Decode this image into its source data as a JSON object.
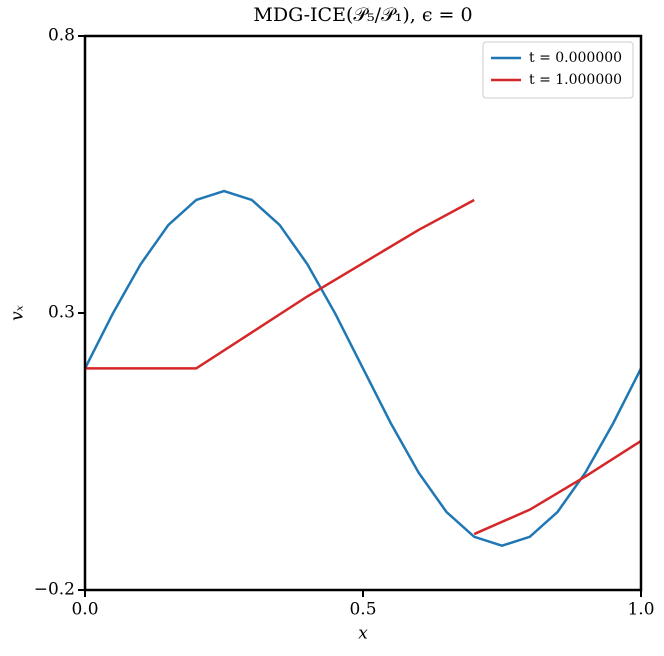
{
  "chart_data": {
    "type": "line",
    "title": "MDG-ICE(𝒫₅/𝒫₁), ϵ = 0",
    "x_label": "x",
    "y_label": "vₓ",
    "xlim": [
      0,
      1
    ],
    "ylim": [
      -0.2,
      0.8
    ],
    "xticks": [
      {
        "value": 0,
        "label": "0.0"
      },
      {
        "value": 0.5,
        "label": "0.5"
      },
      {
        "value": 1,
        "label": "1.0"
      }
    ],
    "yticks": [
      {
        "value": -0.2,
        "label": "−0.2"
      },
      {
        "value": 0.3,
        "label": "0.3"
      },
      {
        "value": 0.8,
        "label": "0.8"
      }
    ],
    "legend": "upper-right",
    "series": [
      {
        "name": "t = 0.000000",
        "color": "#1f77b4",
        "x": [
          0,
          0.05,
          0.1,
          0.15,
          0.2,
          0.25,
          0.3,
          0.35,
          0.4,
          0.45,
          0.5,
          0.55,
          0.6,
          0.65,
          0.7,
          0.75,
          0.8,
          0.85,
          0.9,
          0.95,
          1
        ],
        "values": [
          0.2,
          0.299,
          0.388,
          0.459,
          0.504,
          0.52,
          0.504,
          0.459,
          0.388,
          0.299,
          0.2,
          0.101,
          0.012,
          -0.059,
          -0.104,
          -0.12,
          -0.104,
          -0.059,
          0.012,
          0.101,
          0.2
        ]
      },
      {
        "name": "t = 1.000000",
        "color": "#d62728",
        "x": [
          0,
          0.2,
          0.3,
          0.4,
          0.5,
          0.6,
          0.7,
          0.7,
          0.7,
          0.8,
          0.9,
          1
        ],
        "values": [
          0.2,
          0.2,
          0.265,
          0.33,
          0.39,
          0.45,
          0.504,
          null,
          -0.099,
          -0.055,
          0.005,
          0.069
        ]
      }
    ]
  }
}
